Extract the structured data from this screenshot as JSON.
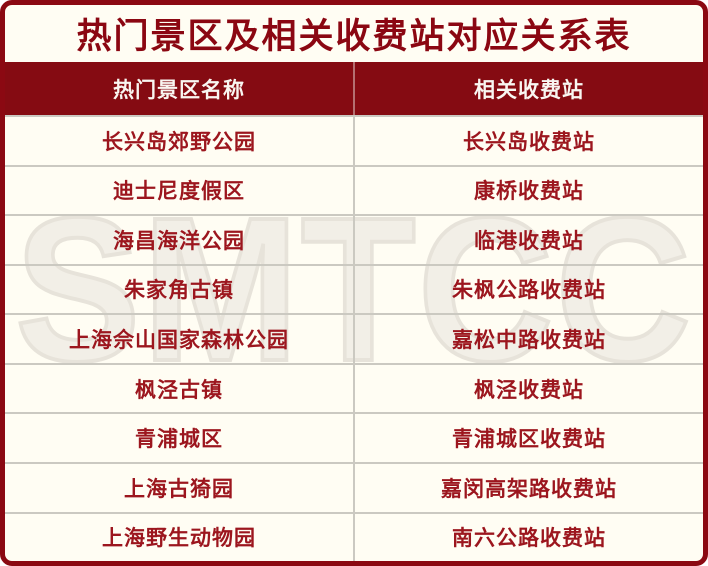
{
  "title": "热门景区及相关收费站对应关系表",
  "watermark": "SMTCC",
  "table": {
    "columns": [
      "热门景区名称",
      "相关收费站"
    ],
    "rows": [
      [
        "长兴岛郊野公园",
        "长兴岛收费站"
      ],
      [
        "迪士尼度假区",
        "康桥收费站"
      ],
      [
        "海昌海洋公园",
        "临港收费站"
      ],
      [
        "朱家角古镇",
        "朱枫公路收费站"
      ],
      [
        "上海佘山国家森林公园",
        "嘉松中路收费站"
      ],
      [
        "枫泾古镇",
        "枫泾收费站"
      ],
      [
        "青浦城区",
        "青浦城区收费站"
      ],
      [
        "上海古猗园",
        "嘉闵高架路收费站"
      ],
      [
        "上海野生动物园",
        "南六公路收费站"
      ]
    ]
  },
  "colors": {
    "border": "#8B0912",
    "header_bg": "#850B12",
    "title_text": "#8B0712",
    "cell_text": "#9C161E",
    "background": "#FFFDF3",
    "grid_line": "#CBC9C1",
    "header_text": "#F9F6F1",
    "watermark_fill": "#F2EFE7",
    "watermark_stroke": "#E7E3DA"
  }
}
